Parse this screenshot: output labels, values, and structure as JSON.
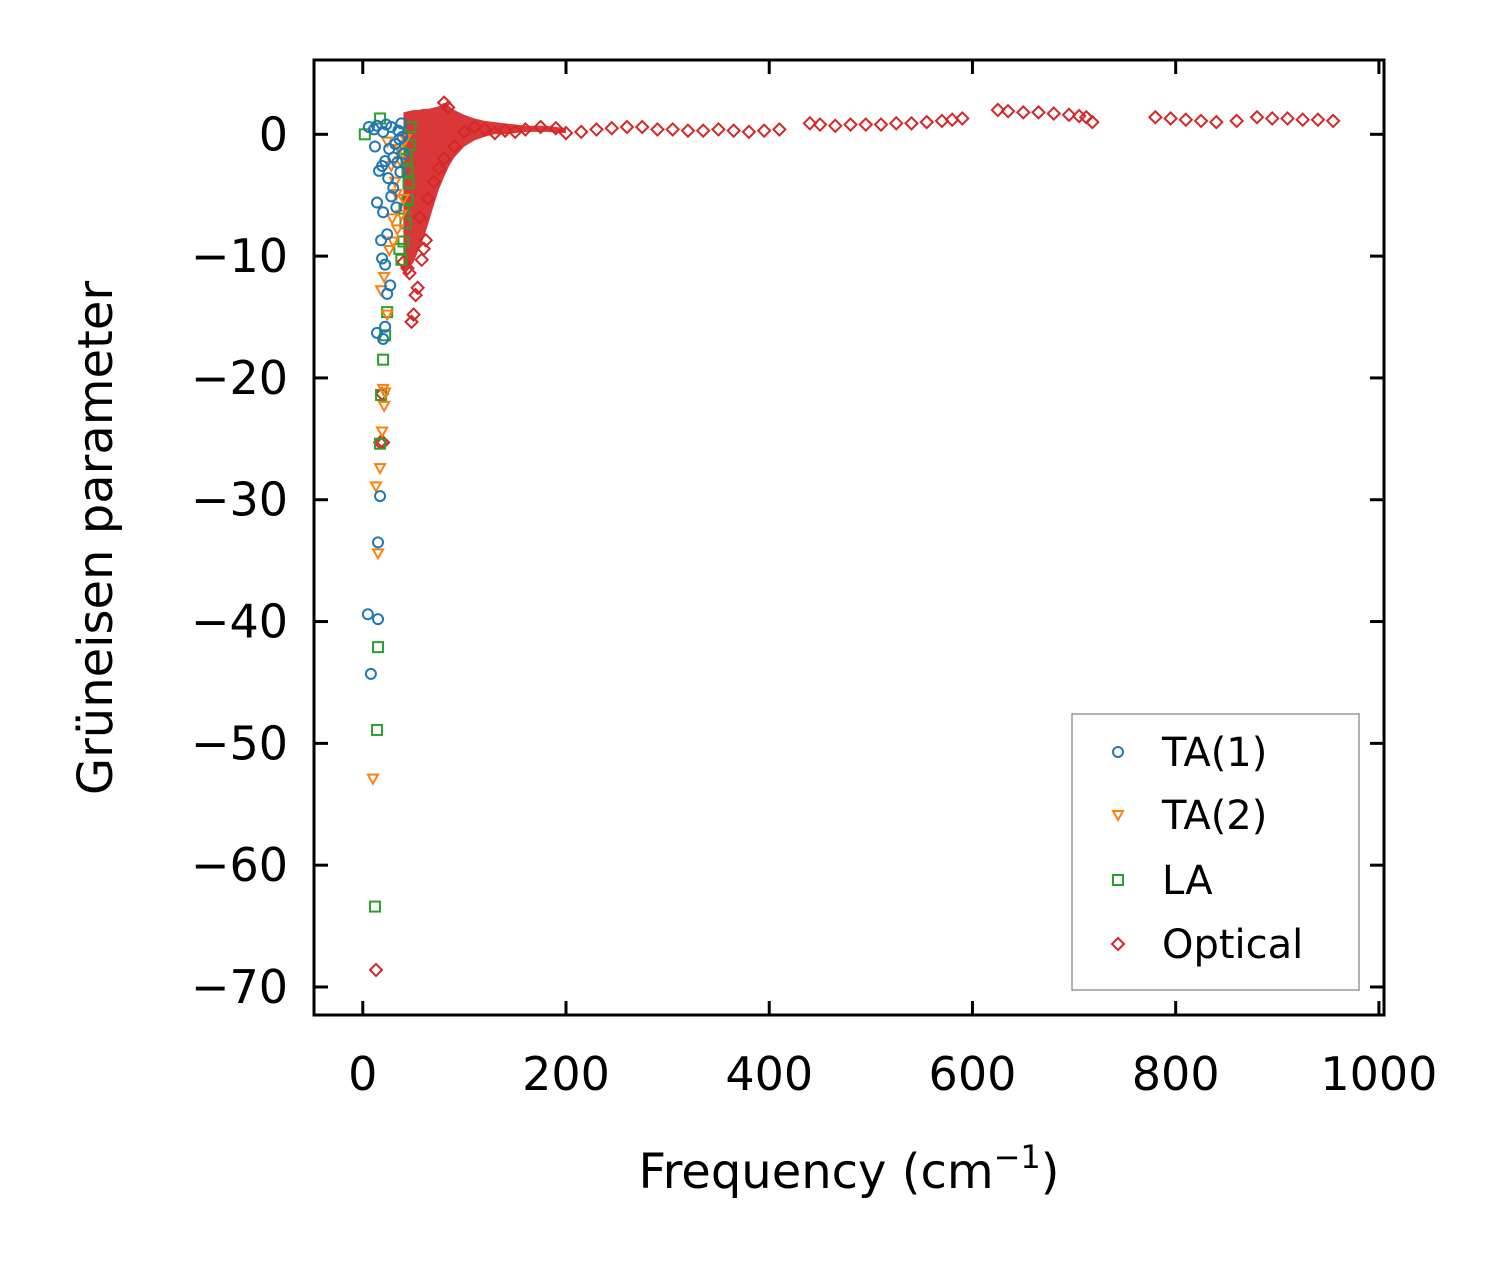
{
  "chart_data": {
    "type": "scatter",
    "title": "",
    "xlabel": "Frequency (cm",
    "xlabel_sup": "−1",
    "xlabel_suffix": ")",
    "ylabel": "Grüneisen parameter",
    "xlim": [
      -48,
      1005
    ],
    "ylim": [
      -72.3,
      6.1
    ],
    "xticks": [
      0,
      200,
      400,
      600,
      800,
      1000
    ],
    "yticks": [
      0,
      -10,
      -20,
      -30,
      -40,
      -50,
      -60,
      -70
    ],
    "xtick_labels": [
      "0",
      "200",
      "400",
      "600",
      "800",
      "1000"
    ],
    "ytick_labels": [
      "0",
      "−10",
      "−20",
      "−30",
      "−40",
      "−50",
      "−60",
      "−70"
    ],
    "grid": false,
    "legend_position": "lower-right",
    "series": [
      {
        "name": "TA(1)",
        "marker": "circle",
        "color": "#1f77b4",
        "points": [
          [
            5,
            -39.4
          ],
          [
            8,
            -44.3
          ],
          [
            15,
            -33.5
          ],
          [
            15,
            -39.8
          ],
          [
            17,
            -29.7
          ],
          [
            14,
            -16.3
          ],
          [
            20,
            -16.8
          ],
          [
            22,
            -15.8
          ],
          [
            24,
            -13.1
          ],
          [
            27,
            -12.4
          ],
          [
            19,
            -10.2
          ],
          [
            22,
            -10.7
          ],
          [
            18,
            -8.7
          ],
          [
            24,
            -8.2
          ],
          [
            14,
            -5.6
          ],
          [
            20,
            -6.4
          ],
          [
            28,
            -5.1
          ],
          [
            16,
            -3.0
          ],
          [
            22,
            -2.2
          ],
          [
            30,
            -4.4
          ],
          [
            12,
            -1.0
          ],
          [
            26,
            -1.2
          ],
          [
            34,
            -2.3
          ],
          [
            36,
            -0.4
          ],
          [
            6,
            0.6
          ],
          [
            14,
            0.7
          ],
          [
            20,
            0.2
          ],
          [
            28,
            0.6
          ],
          [
            38,
            0.9
          ],
          [
            32,
            -0.8
          ],
          [
            40,
            -1.6
          ],
          [
            25,
            -3.6
          ],
          [
            33,
            -6.0
          ],
          [
            19,
            -2.6
          ],
          [
            11,
            0.4
          ],
          [
            30,
            -1.9
          ],
          [
            37,
            -3.1
          ],
          [
            23,
            0.8
          ],
          [
            35,
            0.3
          ],
          [
            39,
            -0.2
          ]
        ]
      },
      {
        "name": "TA(2)",
        "marker": "triangle-down",
        "color": "#ff7f0e",
        "points": [
          [
            10,
            -52.9
          ],
          [
            15,
            -34.4
          ],
          [
            13,
            -28.9
          ],
          [
            17,
            -27.4
          ],
          [
            19,
            -24.4
          ],
          [
            21,
            -22.3
          ],
          [
            22,
            -21.2
          ],
          [
            20,
            -20.9
          ],
          [
            24,
            -14.8
          ],
          [
            18,
            -12.8
          ],
          [
            21,
            -11.7
          ],
          [
            26,
            -9.5
          ],
          [
            30,
            -8.8
          ],
          [
            34,
            -7.8
          ],
          [
            38,
            -6.6
          ],
          [
            40,
            -5.3
          ],
          [
            32,
            -3.9
          ],
          [
            28,
            -2.6
          ],
          [
            36,
            -1.2
          ],
          [
            24,
            -0.6
          ],
          [
            42,
            -0.4
          ],
          [
            33,
            -4.9
          ],
          [
            29,
            -6.9
          ],
          [
            37,
            -2.2
          ]
        ]
      },
      {
        "name": "LA",
        "marker": "square",
        "color": "#2ca02c",
        "points": [
          [
            2,
            0.0
          ],
          [
            12,
            -63.4
          ],
          [
            14,
            -48.9
          ],
          [
            15,
            -42.1
          ],
          [
            17,
            -25.4
          ],
          [
            18,
            -21.4
          ],
          [
            20,
            -18.5
          ],
          [
            22,
            -16.5
          ],
          [
            24,
            -14.6
          ],
          [
            38,
            -10.3
          ],
          [
            40,
            -8.8
          ],
          [
            42,
            -7.3
          ],
          [
            44,
            -5.4
          ],
          [
            45,
            -4.0
          ],
          [
            43,
            -2.0
          ],
          [
            46,
            -0.9
          ],
          [
            47,
            0.6
          ],
          [
            17,
            1.3
          ],
          [
            36,
            -9.4
          ],
          [
            41,
            -6.1
          ],
          [
            44,
            -3.0
          ],
          [
            39,
            -1.5
          ]
        ]
      },
      {
        "name": "Optical",
        "marker": "diamond",
        "color": "#d62728",
        "points": [
          [
            13,
            -68.6
          ],
          [
            17,
            -25.3
          ],
          [
            19,
            -21.3
          ],
          [
            20,
            -25.3
          ],
          [
            48,
            -15.4
          ],
          [
            50,
            -14.8
          ],
          [
            52,
            -13.2
          ],
          [
            54,
            -12.6
          ],
          [
            46,
            -11.4
          ],
          [
            44,
            -11.0
          ],
          [
            58,
            -10.3
          ],
          [
            60,
            -9.4
          ],
          [
            62,
            -8.7
          ],
          [
            40,
            -10.5
          ],
          [
            56,
            -6.8
          ],
          [
            64,
            -5.3
          ],
          [
            70,
            -3.9
          ],
          [
            75,
            -2.8
          ],
          [
            80,
            -2.0
          ],
          [
            90,
            -1.0
          ],
          [
            100,
            0.2
          ],
          [
            110,
            0.6
          ],
          [
            80,
            2.6
          ],
          [
            84,
            2.2
          ],
          [
            120,
            0.4
          ],
          [
            130,
            0.1
          ],
          [
            140,
            0.3
          ],
          [
            150,
            0.2
          ],
          [
            160,
            0.4
          ],
          [
            175,
            0.6
          ],
          [
            190,
            0.5
          ],
          [
            200,
            0.1
          ],
          [
            215,
            0.2
          ],
          [
            230,
            0.4
          ],
          [
            245,
            0.5
          ],
          [
            260,
            0.6
          ],
          [
            275,
            0.6
          ],
          [
            290,
            0.4
          ],
          [
            305,
            0.4
          ],
          [
            320,
            0.3
          ],
          [
            335,
            0.3
          ],
          [
            350,
            0.4
          ],
          [
            365,
            0.3
          ],
          [
            380,
            0.2
          ],
          [
            395,
            0.3
          ],
          [
            410,
            0.4
          ],
          [
            440,
            0.9
          ],
          [
            450,
            0.8
          ],
          [
            465,
            0.7
          ],
          [
            480,
            0.8
          ],
          [
            495,
            0.8
          ],
          [
            510,
            0.8
          ],
          [
            525,
            0.9
          ],
          [
            540,
            0.9
          ],
          [
            555,
            1.0
          ],
          [
            570,
            1.1
          ],
          [
            580,
            1.2
          ],
          [
            590,
            1.3
          ],
          [
            625,
            2.0
          ],
          [
            635,
            1.9
          ],
          [
            650,
            1.8
          ],
          [
            665,
            1.8
          ],
          [
            680,
            1.7
          ],
          [
            695,
            1.6
          ],
          [
            705,
            1.5
          ],
          [
            712,
            1.4
          ],
          [
            718,
            1.0
          ],
          [
            780,
            1.4
          ],
          [
            795,
            1.3
          ],
          [
            810,
            1.2
          ],
          [
            825,
            1.1
          ],
          [
            840,
            1.0
          ],
          [
            860,
            1.1
          ],
          [
            880,
            1.4
          ],
          [
            895,
            1.3
          ],
          [
            910,
            1.3
          ],
          [
            925,
            1.2
          ],
          [
            940,
            1.2
          ],
          [
            955,
            1.1
          ]
        ]
      }
    ],
    "optical_band": {
      "name": "Optical",
      "x": [
        40,
        45,
        50,
        55,
        60,
        65,
        70,
        75,
        80,
        85,
        90,
        100,
        110,
        120,
        130,
        140,
        150,
        160,
        180,
        200
      ],
      "upper": [
        1.8,
        1.9,
        2.0,
        2.0,
        2.1,
        2.1,
        2.2,
        2.3,
        2.6,
        2.3,
        2.0,
        1.6,
        1.3,
        1.1,
        1.0,
        0.9,
        0.8,
        0.7,
        0.7,
        0.5
      ],
      "lower": [
        -11.5,
        -11.0,
        -10.5,
        -9.5,
        -8.5,
        -7.2,
        -5.8,
        -4.5,
        -3.5,
        -2.6,
        -1.9,
        -1.0,
        -0.5,
        -0.2,
        0.0,
        0.0,
        0.1,
        0.2,
        0.2,
        0.1
      ]
    }
  }
}
